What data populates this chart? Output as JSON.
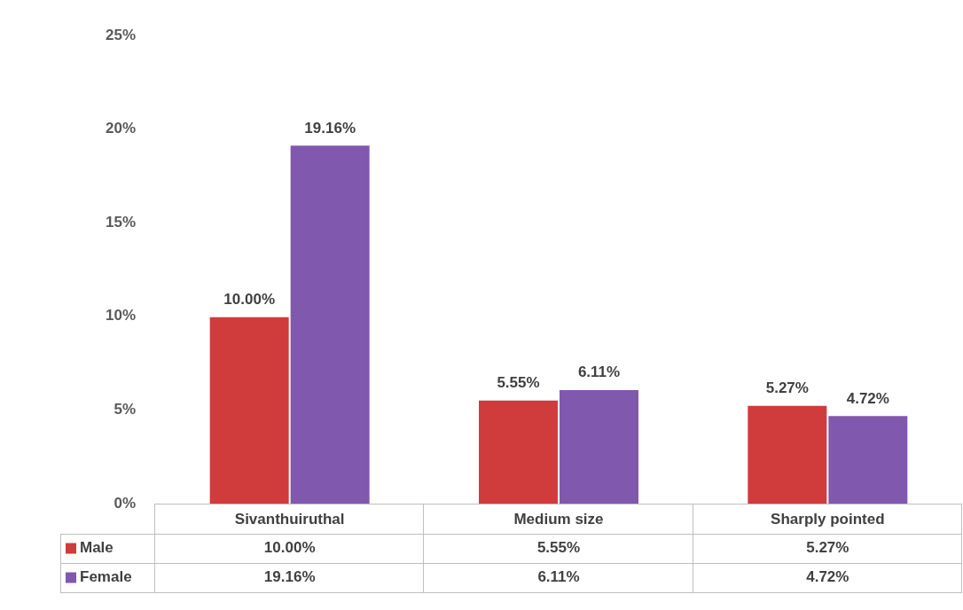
{
  "chart_data": {
    "type": "bar",
    "categories": [
      "Sivanthuiruthal",
      "Medium size",
      "Sharply pointed"
    ],
    "series": [
      {
        "name": "Male",
        "color": "#d03b3b",
        "values": [
          10.0,
          5.55,
          5.27
        ],
        "value_labels": [
          "10.00%",
          "5.55%",
          "5.27%"
        ]
      },
      {
        "name": "Female",
        "color": "#8058ae",
        "values": [
          19.16,
          6.11,
          4.72
        ],
        "value_labels": [
          "19.16%",
          "6.11%",
          "4.72%"
        ]
      }
    ],
    "ylim": [
      0,
      25
    ],
    "yticks": [
      {
        "value": 0,
        "label": "0%"
      },
      {
        "value": 5,
        "label": "5%"
      },
      {
        "value": 10,
        "label": "10%"
      },
      {
        "value": 15,
        "label": "15%"
      },
      {
        "value": 20,
        "label": "20%"
      },
      {
        "value": 25,
        "label": "25%"
      }
    ],
    "grid": false,
    "legend": "bottom"
  }
}
